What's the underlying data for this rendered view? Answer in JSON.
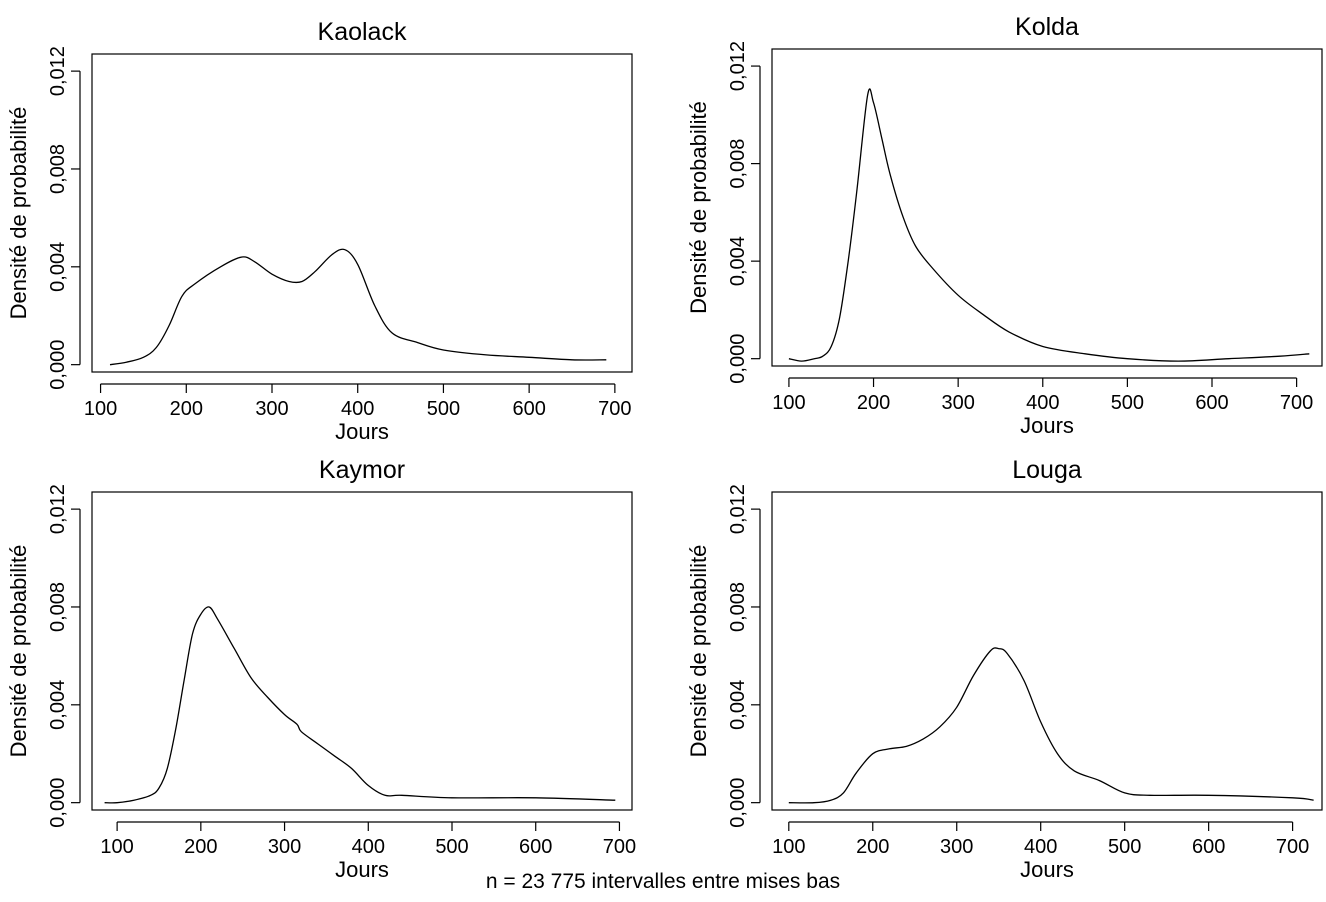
{
  "caption": "n = 23 775 intervalles entre mises bas",
  "chart_data": [
    {
      "type": "line",
      "title": "Kaolack",
      "xlabel": "Jours",
      "ylabel": "Densité de probabilité",
      "xlim": [
        90,
        720
      ],
      "ylim": [
        -0.0003,
        0.0127
      ],
      "x_ticks": [
        100,
        200,
        300,
        400,
        500,
        600,
        700
      ],
      "x_tick_labels": [
        "100",
        "200",
        "300",
        "400",
        "500",
        "600",
        "700"
      ],
      "y_ticks": [
        0,
        0.004,
        0.008,
        0.012
      ],
      "y_tick_labels": [
        "0,000",
        "0,004",
        "0,008",
        "0,012"
      ],
      "x": [
        111,
        130,
        150,
        165,
        180,
        195,
        210,
        240,
        265,
        280,
        300,
        320,
        335,
        350,
        370,
        385,
        400,
        420,
        440,
        470,
        500,
        550,
        600,
        650,
        690
      ],
      "y": [
        0.0,
        0.0001,
        0.0003,
        0.0007,
        0.0016,
        0.0028,
        0.0033,
        0.004,
        0.0044,
        0.0042,
        0.0037,
        0.0034,
        0.0034,
        0.0038,
        0.0045,
        0.0047,
        0.0041,
        0.0024,
        0.0013,
        0.0009,
        0.0006,
        0.0004,
        0.0003,
        0.0002,
        0.0002
      ]
    },
    {
      "type": "line",
      "title": "Kolda",
      "xlabel": "Jours",
      "ylabel": "Densité de probabilité",
      "xlim": [
        80,
        730
      ],
      "ylim": [
        -0.0003,
        0.0127
      ],
      "x_ticks": [
        100,
        200,
        300,
        400,
        500,
        600,
        700
      ],
      "x_tick_labels": [
        "100",
        "200",
        "300",
        "400",
        "500",
        "600",
        "700"
      ],
      "y_ticks": [
        0,
        0.004,
        0.008,
        0.012
      ],
      "y_tick_labels": [
        "0,000",
        "0,004",
        "0,008",
        "0,012"
      ],
      "x": [
        100,
        115,
        130,
        140,
        150,
        160,
        170,
        180,
        193,
        200,
        210,
        220,
        235,
        250,
        270,
        300,
        330,
        360,
        400,
        450,
        500,
        560,
        620,
        680,
        715
      ],
      "y": [
        0.0,
        -0.0001,
        0.0,
        0.0001,
        0.0005,
        0.0017,
        0.004,
        0.0068,
        0.0108,
        0.0105,
        0.009,
        0.0075,
        0.0058,
        0.0046,
        0.0037,
        0.0026,
        0.0018,
        0.0011,
        0.0005,
        0.0002,
        0.0,
        -0.0001,
        0.0,
        0.0001,
        0.0002
      ]
    },
    {
      "type": "line",
      "title": "Kaymor",
      "xlabel": "Jours",
      "ylabel": "Densité de probabilité",
      "xlim": [
        70,
        715
      ],
      "ylim": [
        -0.0003,
        0.0127
      ],
      "x_ticks": [
        100,
        200,
        300,
        400,
        500,
        600,
        700
      ],
      "x_tick_labels": [
        "100",
        "200",
        "300",
        "400",
        "500",
        "600",
        "700"
      ],
      "y_ticks": [
        0,
        0.004,
        0.008,
        0.012
      ],
      "y_tick_labels": [
        "0,000",
        "0,004",
        "0,008",
        "0,012"
      ],
      "x": [
        85,
        100,
        120,
        140,
        150,
        160,
        170,
        180,
        190,
        200,
        210,
        220,
        240,
        260,
        280,
        300,
        315,
        320,
        340,
        360,
        380,
        400,
        420,
        440,
        500,
        600,
        695
      ],
      "y": [
        0.0,
        0.0,
        0.0001,
        0.0003,
        0.0006,
        0.0014,
        0.003,
        0.005,
        0.0069,
        0.0077,
        0.008,
        0.0075,
        0.0063,
        0.0051,
        0.0043,
        0.0036,
        0.0032,
        0.0029,
        0.0024,
        0.0019,
        0.0014,
        0.0007,
        0.0003,
        0.0003,
        0.0002,
        0.0002,
        0.0001
      ]
    },
    {
      "type": "line",
      "title": "Louga",
      "xlabel": "Jours",
      "ylabel": "Densité de probabilité",
      "xlim": [
        80,
        735
      ],
      "ylim": [
        -0.0003,
        0.0127
      ],
      "x_ticks": [
        100,
        200,
        300,
        400,
        500,
        600,
        700
      ],
      "x_tick_labels": [
        "100",
        "200",
        "300",
        "400",
        "500",
        "600",
        "700"
      ],
      "y_ticks": [
        0,
        0.004,
        0.008,
        0.012
      ],
      "y_tick_labels": [
        "0,000",
        "0,004",
        "0,008",
        "0,012"
      ],
      "x": [
        100,
        130,
        150,
        165,
        180,
        200,
        220,
        240,
        260,
        280,
        300,
        320,
        340,
        350,
        360,
        380,
        400,
        420,
        440,
        470,
        500,
        530,
        600,
        700,
        725
      ],
      "y": [
        0.0,
        0.0,
        0.0001,
        0.0004,
        0.0012,
        0.002,
        0.0022,
        0.0023,
        0.0026,
        0.0031,
        0.0039,
        0.0052,
        0.0062,
        0.0063,
        0.0061,
        0.005,
        0.0033,
        0.002,
        0.0013,
        0.0009,
        0.0004,
        0.0003,
        0.0003,
        0.0002,
        0.0001
      ]
    }
  ]
}
